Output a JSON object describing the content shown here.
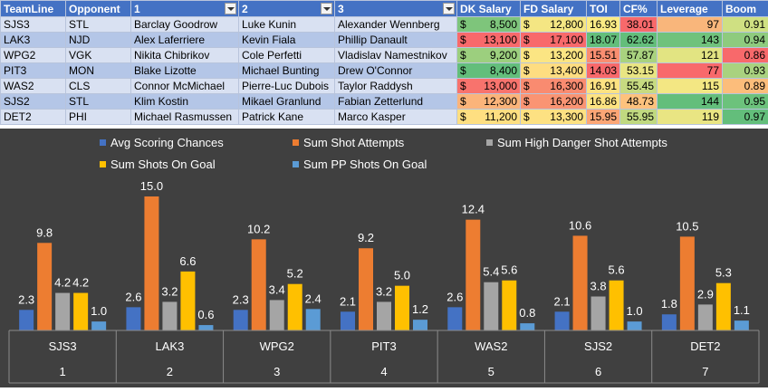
{
  "table": {
    "headers": [
      "TeamLine",
      "Opponent",
      "1",
      "2",
      "3",
      "DK Salary",
      "FD Salary",
      "TOI",
      "CF%",
      "Leverage",
      "Boom"
    ],
    "filter_headers": [
      2,
      3,
      4
    ],
    "currency_symbol": "$",
    "rows": [
      {
        "teamline": "SJS3",
        "opponent": "STL",
        "p1": "Barclay Goodrow",
        "p2": "Luke Kunin",
        "p3": "Alexander Wennberg",
        "dk": "8,500",
        "fd": "12,800",
        "toi": "16.93",
        "cf": "38.01",
        "lev": "97",
        "boom": "0.91",
        "colors": {
          "dk": "#7ec57b",
          "fd": "#f4e683",
          "toi": "#fbeb84",
          "cf": "#f8696b",
          "lev": "#f9b67b",
          "boom": "#cfe082"
        }
      },
      {
        "teamline": "LAK3",
        "opponent": "NJD",
        "p1": "Alex Laferriere",
        "p2": "Kevin Fiala",
        "p3": "Phillip Danault",
        "dk": "13,100",
        "fd": "17,100",
        "toi": "18.07",
        "cf": "62.62",
        "lev": "143",
        "boom": "0.94",
        "colors": {
          "dk": "#f8696b",
          "fd": "#f8696b",
          "toi": "#63be7b",
          "cf": "#63be7b",
          "lev": "#70c27c",
          "boom": "#8ecb7e"
        }
      },
      {
        "teamline": "WPG2",
        "opponent": "VGK",
        "p1": "Nikita Chibrikov",
        "p2": "Cole Perfetti",
        "p3": "Vladislav Namestnikov",
        "dk": "9,200",
        "fd": "13,200",
        "toi": "15.51",
        "cf": "57.87",
        "lev": "121",
        "boom": "0.86",
        "colors": {
          "dk": "#9ccf7e",
          "fd": "#fbe583",
          "toi": "#f98e71",
          "cf": "#a9d27f",
          "lev": "#e2e482",
          "boom": "#f8696b"
        }
      },
      {
        "teamline": "PIT3",
        "opponent": "MON",
        "p1": "Blake Lizotte",
        "p2": "Michael Bunting",
        "p3": "Drew O'Connor",
        "dk": "8,400",
        "fd": "13,400",
        "toi": "14.03",
        "cf": "53.15",
        "lev": "77",
        "boom": "0.93",
        "colors": {
          "dk": "#63be7b",
          "fd": "#fedd81",
          "toi": "#f8696b",
          "cf": "#e9e583",
          "lev": "#f8696b",
          "boom": "#a9d27f"
        }
      },
      {
        "teamline": "WAS2",
        "opponent": "CLS",
        "p1": "Connor McMichael",
        "p2": "Pierre-Luc Dubois",
        "p3": "Taylor Raddysh",
        "dk": "13,000",
        "fd": "16,300",
        "toi": "16.91",
        "cf": "55.45",
        "lev": "115",
        "boom": "0.89",
        "colors": {
          "dk": "#f8736d",
          "fd": "#f98b70",
          "toi": "#fde282",
          "cf": "#c7db81",
          "lev": "#f3e783",
          "boom": "#fcbd7b"
        }
      },
      {
        "teamline": "SJS2",
        "opponent": "STL",
        "p1": "Klim Kostin",
        "p2": "Mikael Granlund",
        "p3": "Fabian Zetterlund",
        "dk": "12,300",
        "fd": "16,200",
        "toi": "16.86",
        "cf": "48.73",
        "lev": "144",
        "boom": "0.95",
        "colors": {
          "dk": "#fbb47a",
          "fd": "#fa9473",
          "toi": "#fee382",
          "cf": "#fdc27d",
          "lev": "#63be7b",
          "boom": "#6cc27c"
        }
      },
      {
        "teamline": "DET2",
        "opponent": "PHI",
        "p1": "Michael Rasmussen",
        "p2": "Patrick Kane",
        "p3": "Marco Kasper",
        "dk": "11,200",
        "fd": "13,300",
        "toi": "15.95",
        "cf": "55.95",
        "lev": "119",
        "boom": "0.97",
        "colors": {
          "dk": "#fedf81",
          "fd": "#fde182",
          "toi": "#fca676",
          "cf": "#c0d980",
          "lev": "#e9e583",
          "boom": "#63be7b"
        }
      }
    ]
  },
  "chart_data": {
    "type": "bar",
    "categories": [
      {
        "team": "SJS3",
        "rank": "1"
      },
      {
        "team": "LAK3",
        "rank": "2"
      },
      {
        "team": "WPG2",
        "rank": "3"
      },
      {
        "team": "PIT3",
        "rank": "4"
      },
      {
        "team": "WAS2",
        "rank": "5"
      },
      {
        "team": "SJS2",
        "rank": "6"
      },
      {
        "team": "DET2",
        "rank": "7"
      }
    ],
    "series": [
      {
        "name": "Avg Scoring Chances",
        "color": "#4472c4",
        "values": [
          2.3,
          2.6,
          2.3,
          2.1,
          2.6,
          2.1,
          1.8
        ]
      },
      {
        "name": "Sum Shot Attempts",
        "color": "#ed7d31",
        "values": [
          9.8,
          15.0,
          10.2,
          9.2,
          12.4,
          10.6,
          10.5
        ]
      },
      {
        "name": "Sum High Danger Shot Attempts",
        "color": "#a5a5a5",
        "values": [
          4.2,
          3.2,
          3.4,
          3.2,
          5.4,
          3.8,
          2.9
        ]
      },
      {
        "name": "Sum Shots On Goal",
        "color": "#ffc000",
        "values": [
          4.2,
          6.6,
          5.2,
          5.0,
          5.6,
          5.6,
          5.3
        ]
      },
      {
        "name": "Sum PP Shots On Goal",
        "color": "#5b9bd5",
        "values": [
          1.0,
          0.6,
          2.4,
          1.2,
          0.8,
          1.0,
          1.1
        ]
      }
    ],
    "ylim": [
      0,
      15
    ],
    "grid": false,
    "legend_position": "top",
    "background_color": "#404040",
    "label_color": "#ffffff"
  }
}
